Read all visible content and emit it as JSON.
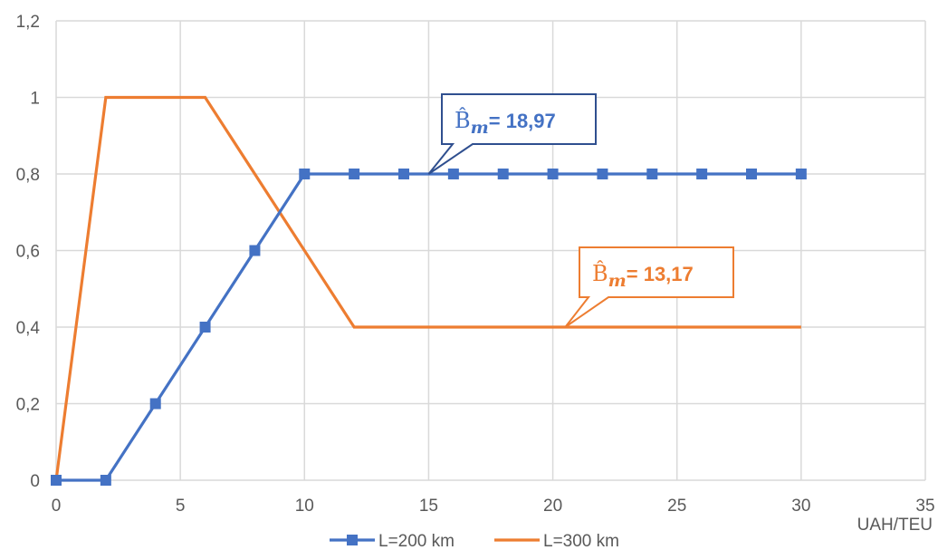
{
  "chart_data": {
    "type": "line",
    "xlabel": "UAH/TEU",
    "ylabel": "",
    "xlim": [
      0,
      35
    ],
    "ylim": [
      0,
      1.2
    ],
    "x_ticks": [
      "0",
      "5",
      "10",
      "15",
      "20",
      "25",
      "30",
      "35"
    ],
    "y_ticks": [
      "0",
      "0,2",
      "0,4",
      "0,6",
      "0,8",
      "1",
      "1,2"
    ],
    "grid": true,
    "legend_position": "bottom",
    "series": [
      {
        "name": "L=200 km",
        "color": "#4472C4",
        "marker": "square",
        "x": [
          0,
          2,
          4,
          6,
          8,
          10,
          12,
          14,
          16,
          18,
          20,
          22,
          24,
          26,
          28,
          30
        ],
        "y": [
          0,
          0,
          0.2,
          0.4,
          0.6,
          0.8,
          0.8,
          0.8,
          0.8,
          0.8,
          0.8,
          0.8,
          0.8,
          0.8,
          0.8,
          0.8
        ]
      },
      {
        "name": "L=300 km",
        "color": "#ED7D31",
        "marker": "none",
        "x": [
          0,
          2,
          6,
          12,
          30
        ],
        "y": [
          0,
          1,
          1,
          0.4,
          0.4
        ]
      }
    ],
    "annotations": [
      {
        "series": "L=200 km",
        "symbol": "B̂",
        "subscript": "m",
        "value_text": "= 18,97",
        "color": "#4472C4",
        "box_color": "#2F4F8F",
        "pointer_x": 15,
        "pointer_y": 0.8
      },
      {
        "series": "L=300 km",
        "symbol": "B̂",
        "subscript": "m",
        "value_text": "= 13,17",
        "color": "#ED7D31",
        "box_color": "#ED7D31",
        "pointer_x": 20.5,
        "pointer_y": 0.4
      }
    ]
  }
}
